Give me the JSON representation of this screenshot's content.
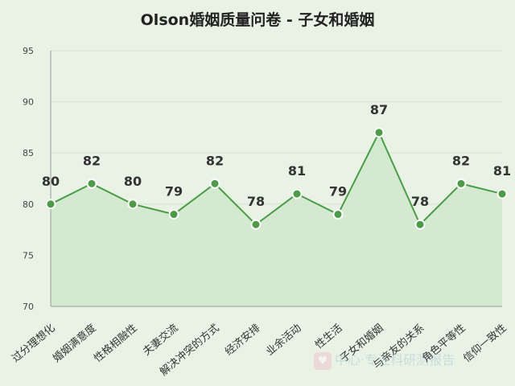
{
  "chart_data": {
    "type": "area",
    "title": "Olson婚姻质量问卷 - 子女和婚姻",
    "categories": [
      "过分理想化",
      "婚姻满意度",
      "性格相融性",
      "夫妻交流",
      "解决冲突的方式",
      "经济安排",
      "业余活动",
      "性生活",
      "子女和婚姻",
      "与亲友的关系",
      "角色平等性",
      "信仰一致性"
    ],
    "values": [
      80,
      82,
      80,
      79,
      82,
      78,
      81,
      79,
      87,
      78,
      82,
      81
    ],
    "ylim": [
      70,
      95
    ],
    "yticks": [
      70,
      75,
      80,
      85,
      90,
      95
    ],
    "grid": true,
    "line_color": "#4a9d45",
    "fill_color": "#cfe7cc"
  },
  "watermark": {
    "text": "中心·专注科研测报告",
    "icon": "heart-icon"
  }
}
